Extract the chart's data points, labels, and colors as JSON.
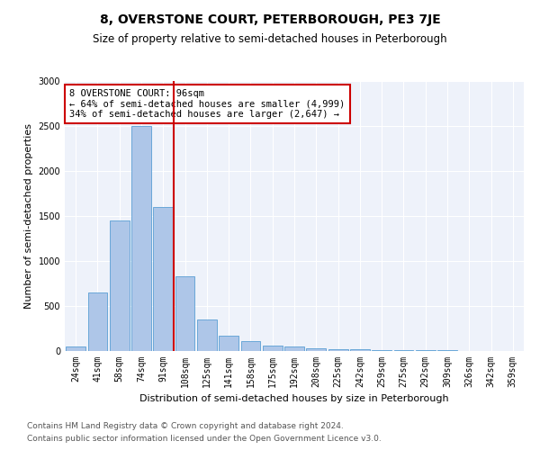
{
  "title": "8, OVERSTONE COURT, PETERBOROUGH, PE3 7JE",
  "subtitle": "Size of property relative to semi-detached houses in Peterborough",
  "xlabel": "Distribution of semi-detached houses by size in Peterborough",
  "ylabel": "Number of semi-detached properties",
  "categories": [
    "24sqm",
    "41sqm",
    "58sqm",
    "74sqm",
    "91sqm",
    "108sqm",
    "125sqm",
    "141sqm",
    "158sqm",
    "175sqm",
    "192sqm",
    "208sqm",
    "225sqm",
    "242sqm",
    "259sqm",
    "275sqm",
    "292sqm",
    "309sqm",
    "326sqm",
    "342sqm",
    "359sqm"
  ],
  "values": [
    50,
    650,
    1450,
    2500,
    1600,
    830,
    350,
    175,
    115,
    65,
    50,
    35,
    25,
    20,
    15,
    10,
    8,
    6,
    5,
    5,
    4
  ],
  "bar_color": "#aec6e8",
  "bar_edge_color": "#5a9fd4",
  "property_line_x": 4.5,
  "annotation_text": "8 OVERSTONE COURT: 96sqm\n← 64% of semi-detached houses are smaller (4,999)\n34% of semi-detached houses are larger (2,647) →",
  "ylim": [
    0,
    3000
  ],
  "footer1": "Contains HM Land Registry data © Crown copyright and database right 2024.",
  "footer2": "Contains public sector information licensed under the Open Government Licence v3.0.",
  "bg_color": "#eef2fa",
  "box_color": "#cc0000",
  "line_color": "#cc0000",
  "title_fontsize": 10,
  "subtitle_fontsize": 8.5,
  "ylabel_fontsize": 8,
  "xlabel_fontsize": 8,
  "tick_fontsize": 7,
  "annotation_fontsize": 7.5,
  "footer_fontsize": 6.5
}
